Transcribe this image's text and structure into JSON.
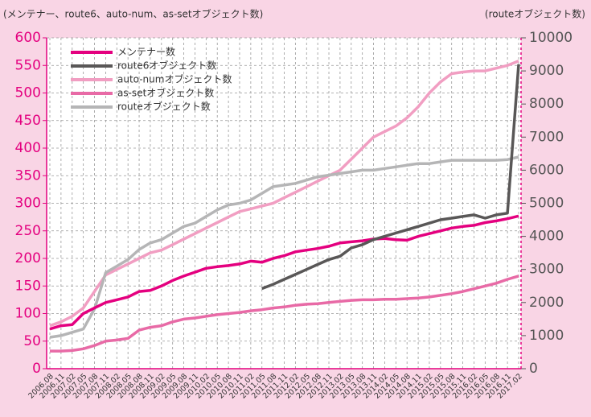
{
  "chart_data": {
    "type": "line",
    "y_label": "(メンテナー、route6、auto-num、as-setオブジェクト数)",
    "y2_label": "(routeオブジェクト数)",
    "categories": [
      "2006.08",
      "2006.11",
      "2007.02",
      "2007.05",
      "2007.08",
      "2007.11",
      "2008.02",
      "2008.05",
      "2008.08",
      "2008.11",
      "2009.02",
      "2009.05",
      "2009.08",
      "2009.11",
      "2010.02",
      "2010.05",
      "2010.08",
      "2010.11",
      "2011.02",
      "2011.05",
      "2011.08",
      "2011.11",
      "2012.02",
      "2012.05",
      "2012.08",
      "2012.11",
      "2013.02",
      "2013.05",
      "2013.08",
      "2013.11",
      "2014.02",
      "2014.05",
      "2014.08",
      "2014.11",
      "2015.02",
      "2015.05",
      "2015.08",
      "2015.11",
      "2016.02",
      "2016.05",
      "2016.08",
      "2016.11",
      "2017.02"
    ],
    "series": [
      {
        "name": "メンテナー数",
        "color": "#e4007f",
        "values": [
          72,
          78,
          80,
          100,
          110,
          120,
          125,
          130,
          140,
          142,
          150,
          160,
          168,
          175,
          182,
          185,
          187,
          190,
          195,
          193,
          200,
          205,
          212,
          215,
          218,
          222,
          228,
          230,
          232,
          235,
          236,
          234,
          233,
          240,
          245,
          250,
          255,
          258,
          260,
          265,
          268,
          272,
          277
        ]
      },
      {
        "name": "route6オブジェクト数",
        "color": "#595757",
        "axis": "y2",
        "values": [
          null,
          null,
          null,
          null,
          null,
          null,
          null,
          null,
          null,
          null,
          null,
          null,
          null,
          null,
          null,
          null,
          null,
          null,
          null,
          2420,
          2550,
          2700,
          2850,
          3000,
          3150,
          3300,
          3400,
          3650,
          3750,
          3900,
          4000,
          4100,
          4200,
          4300,
          4400,
          4500,
          4550,
          4600,
          4650,
          4550,
          4650,
          4700,
          9200
        ]
      },
      {
        "name": "auto-numオブジェクト数",
        "color": "#f19ec2",
        "values": [
          78,
          85,
          95,
          110,
          140,
          170,
          180,
          190,
          200,
          210,
          215,
          225,
          235,
          245,
          255,
          265,
          275,
          285,
          290,
          295,
          300,
          310,
          320,
          330,
          340,
          350,
          360,
          380,
          400,
          420,
          430,
          440,
          455,
          475,
          500,
          520,
          535,
          538,
          540,
          540,
          545,
          550,
          558
        ]
      },
      {
        "name": "as-setオブジェクト数",
        "color": "#e86aa6",
        "values": [
          32,
          32,
          33,
          36,
          42,
          50,
          52,
          55,
          70,
          75,
          78,
          85,
          90,
          92,
          95,
          98,
          100,
          102,
          105,
          107,
          110,
          112,
          115,
          117,
          118,
          120,
          122,
          124,
          125,
          125,
          126,
          126,
          127,
          128,
          130,
          133,
          136,
          140,
          145,
          150,
          155,
          162,
          168
        ]
      },
      {
        "name": "routeオブジェクト数",
        "color": "#b5b5b6",
        "axis": "y2",
        "values": [
          950,
          1000,
          1100,
          1200,
          1800,
          2900,
          3100,
          3300,
          3600,
          3800,
          3900,
          4100,
          4300,
          4400,
          4600,
          4800,
          4950,
          5000,
          5100,
          5300,
          5500,
          5550,
          5600,
          5700,
          5800,
          5850,
          5900,
          5950,
          6000,
          6000,
          6050,
          6100,
          6150,
          6200,
          6200,
          6250,
          6300,
          6300,
          6300,
          6300,
          6300,
          6320,
          6400
        ]
      }
    ],
    "ylim": [
      0,
      600
    ],
    "yticks": [
      0,
      50,
      100,
      150,
      200,
      250,
      300,
      350,
      400,
      450,
      500,
      550,
      600
    ],
    "y2lim": [
      0,
      10000
    ],
    "y2ticks": [
      0,
      1000,
      2000,
      3000,
      4000,
      5000,
      6000,
      7000,
      8000,
      9000,
      10000
    ],
    "grid": true,
    "legend": "upper left"
  }
}
